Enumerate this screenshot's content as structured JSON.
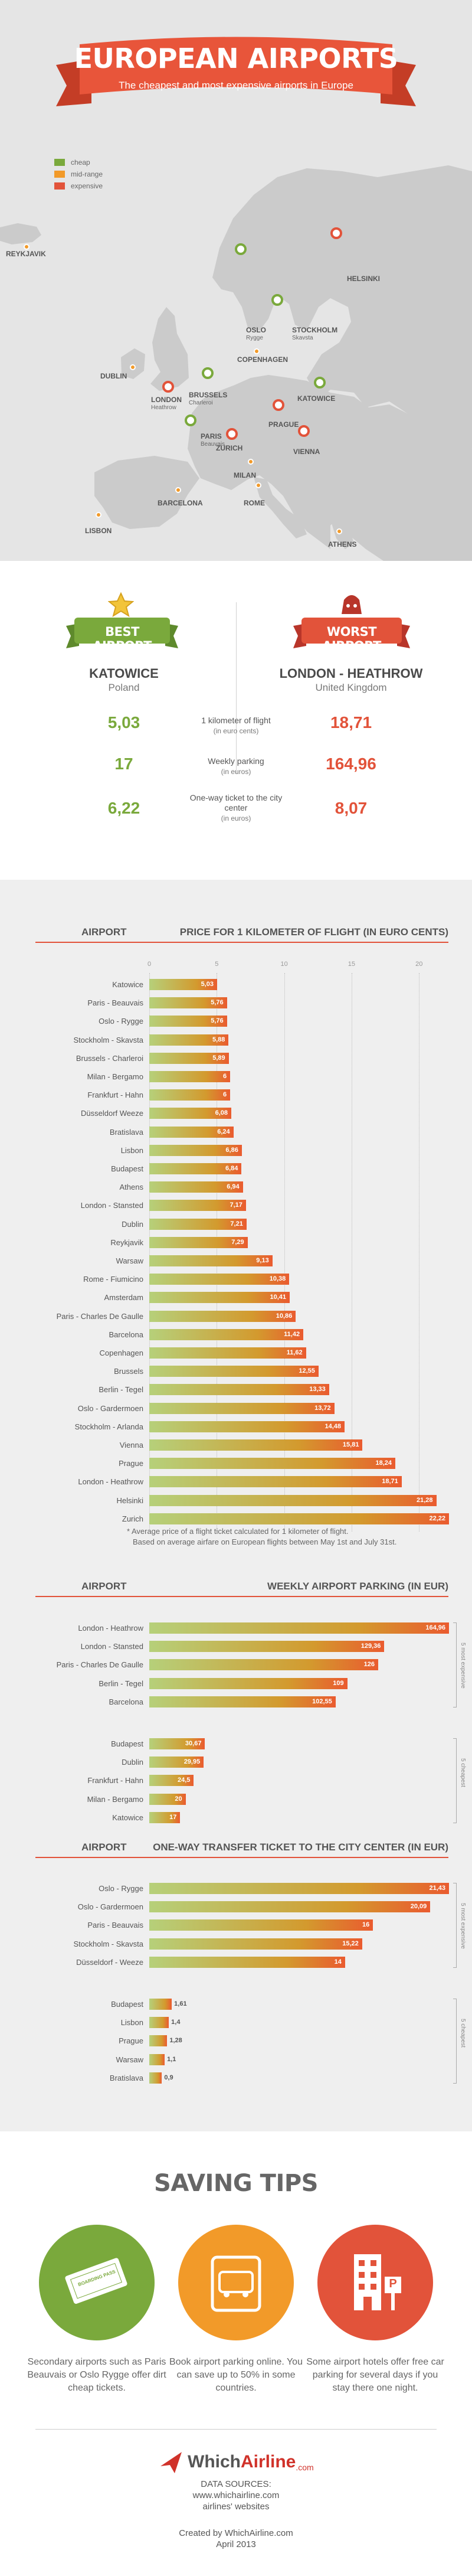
{
  "header": {
    "title": "EUROPEAN AIRPORTS",
    "subtitle": "The cheapest and most expensive airports in Europe"
  },
  "legend": [
    {
      "label": "cheap",
      "color": "#7aa93c"
    },
    {
      "label": "mid-range",
      "color": "#f29a29"
    },
    {
      "label": "expensive",
      "color": "#e2533a"
    }
  ],
  "map": {
    "cities": [
      {
        "name": "REYKJAVIK",
        "sub": "",
        "type": "mid"
      },
      {
        "name": "HELSINKI",
        "sub": "",
        "type": "expensive"
      },
      {
        "name": "OSLO",
        "sub": "Rygge",
        "type": "cheap"
      },
      {
        "name": "STOCKHOLM",
        "sub": "Skavsta",
        "type": "cheap"
      },
      {
        "name": "COPENHAGEN",
        "sub": "",
        "type": "mid"
      },
      {
        "name": "DUBLIN",
        "sub": "",
        "type": "mid"
      },
      {
        "name": "LONDON",
        "sub": "Heathrow",
        "type": "expensive"
      },
      {
        "name": "BRUSSELS",
        "sub": "Charleroi",
        "type": "cheap"
      },
      {
        "name": "KATOWICE",
        "sub": "",
        "type": "cheap"
      },
      {
        "name": "PARIS",
        "sub": "Beauvais",
        "type": "cheap"
      },
      {
        "name": "PRAGUE",
        "sub": "",
        "type": "expensive"
      },
      {
        "name": "ZURICH",
        "sub": "",
        "type": "expensive"
      },
      {
        "name": "VIENNA",
        "sub": "",
        "type": "expensive"
      },
      {
        "name": "MILAN",
        "sub": "",
        "type": "mid"
      },
      {
        "name": "BARCELONA",
        "sub": "",
        "type": "mid"
      },
      {
        "name": "ROME",
        "sub": "",
        "type": "mid"
      },
      {
        "name": "LISBON",
        "sub": "",
        "type": "mid"
      },
      {
        "name": "ATHENS",
        "sub": "",
        "type": "mid"
      }
    ]
  },
  "comparison": {
    "best_label": "BEST AIRPORT",
    "worst_label": "WORST AIRPORT",
    "best_name": "KATOWICE",
    "best_country": "Poland",
    "worst_name": "LONDON - HEATHROW",
    "worst_country": "United Kingdom",
    "rows": [
      {
        "metric": "1 kilometer of flight",
        "unit": "(in euro cents)",
        "best": "5,03",
        "worst": "18,71"
      },
      {
        "metric": "Weekly parking",
        "unit": "(in euros)",
        "best": "17",
        "worst": "164,96"
      },
      {
        "metric": "One-way ticket to the city center",
        "unit": "(in euros)",
        "best": "6,22",
        "worst": "8,07"
      }
    ]
  },
  "chart_data": [
    {
      "type": "bar",
      "title": "PRICE FOR 1 KILOMETER OF FLIGHT (IN EURO CENTS)",
      "category_header": "AIRPORT",
      "ticks": [
        "0",
        "5",
        "10",
        "15",
        "20"
      ],
      "xlim": [
        0,
        22.22
      ],
      "categories": [
        "Katowice",
        "Paris - Beauvais",
        "Oslo - Rygge",
        "Stockholm - Skavsta",
        "Brussels - Charleroi",
        "Milan - Bergamo",
        "Frankfurt - Hahn",
        "Düsseldorf Weeze",
        "Bratislava",
        "Lisbon",
        "Budapest",
        "Athens",
        "London - Stansted",
        "Dublin",
        "Reykjavik",
        "Warsaw",
        "Rome - Fiumicino",
        "Amsterdam",
        "Paris - Charles De Gaulle",
        "Barcelona",
        "Copenhagen",
        "Brussels",
        "Berlin - Tegel",
        "Oslo - Gardermoen",
        "Stockholm - Arlanda",
        "Vienna",
        "Prague",
        "London - Heathrow",
        "Helsinki",
        "Zurich"
      ],
      "values": [
        5.03,
        5.76,
        5.76,
        5.88,
        5.89,
        6,
        6,
        6.08,
        6.24,
        6.86,
        6.84,
        6.94,
        7.17,
        7.21,
        7.29,
        9.13,
        10.38,
        10.41,
        10.86,
        11.42,
        11.62,
        12.55,
        13.33,
        13.72,
        14.48,
        15.81,
        18.24,
        18.71,
        21.28,
        22.22
      ],
      "labels": [
        "5,03",
        "5,76",
        "5,76",
        "5,88",
        "5,89",
        "6",
        "6",
        "6,08",
        "6,24",
        "6,86",
        "6,84",
        "6,94",
        "7,17",
        "7,21",
        "7,29",
        "9,13",
        "10,38",
        "10,41",
        "10,86",
        "11,42",
        "11,62",
        "12,55",
        "13,33",
        "13,72",
        "14,48",
        "15,81",
        "18,24",
        "18,71",
        "21,28",
        "22,22"
      ],
      "notes": [
        "* Average price of a flight ticket calculated for 1 kilometer of flight.",
        "Based on average airfare on European flights between May 1st and July 31st."
      ]
    },
    {
      "type": "bar",
      "title": "WEEKLY AIRPORT PARKING (IN EUR)",
      "category_header": "AIRPORT",
      "xlim": [
        0,
        164.96
      ],
      "groups": [
        {
          "name": "5 most expensive",
          "categories": [
            "London - Heathrow",
            "London - Stansted",
            "Paris - Charles De Gaulle",
            "Berlin - Tegel",
            "Barcelona"
          ],
          "values": [
            164.96,
            129.36,
            126,
            109,
            102.55
          ],
          "labels": [
            "164,96",
            "129,36",
            "126",
            "109",
            "102,55"
          ]
        },
        {
          "name": "5 cheapest",
          "categories": [
            "Budapest",
            "Dublin",
            "Frankfurt - Hahn",
            "Milan - Bergamo",
            "Katowice"
          ],
          "values": [
            30.67,
            29.95,
            24.5,
            20,
            17
          ],
          "labels": [
            "30,67",
            "29,95",
            "24,5",
            "20",
            "17"
          ]
        }
      ]
    },
    {
      "type": "bar",
      "title": "ONE-WAY TRANSFER TICKET TO THE CITY CENTER (IN EUR)",
      "category_header": "AIRPORT",
      "xlim": [
        0,
        21.43
      ],
      "groups": [
        {
          "name": "5 most expensive",
          "categories": [
            "Oslo - Rygge",
            "Oslo - Gardermoen",
            "Paris - Beauvais",
            "Stockholm - Skavsta",
            "Düsseldorf - Weeze"
          ],
          "values": [
            21.43,
            20.09,
            16,
            15.22,
            14
          ],
          "labels": [
            "21,43",
            "20,09",
            "16",
            "15,22",
            "14"
          ]
        },
        {
          "name": "5 cheapest",
          "categories": [
            "Budapest",
            "Lisbon",
            "Prague",
            "Warsaw",
            "Bratislava"
          ],
          "values": [
            1.61,
            1.4,
            1.28,
            1.1,
            0.9
          ],
          "labels": [
            "1,61",
            "1,4",
            "1,28",
            "1,1",
            "0,9"
          ]
        }
      ]
    }
  ],
  "tips": {
    "title": "SAVING TIPS",
    "items": [
      {
        "text": "Secondary airports such as Paris Beauvais or Oslo Rygge offer dirt cheap tickets.",
        "color": "#7aa93c",
        "icon": "ticket-icon",
        "icon_text": "BOARDING PASS"
      },
      {
        "text": "Book airport parking online. You can save up to 50% in some countries.",
        "color": "#f29a29",
        "icon": "car-icon",
        "icon_text": ""
      },
      {
        "text": "Some airport hotels offer free car parking for several days if you stay there one night.",
        "color": "#e2533a",
        "icon": "hotel-icon",
        "icon_text": "P"
      }
    ]
  },
  "footer": {
    "logo_which": "Which",
    "logo_airline": "Airline",
    "logo_com": ".com",
    "sources_label": "DATA SOURCES:",
    "sources_url": "www.whichairline.com",
    "sources_other": "airlines' websites",
    "created_by": "Created by WhichAirline.com",
    "date": "April 2013"
  }
}
